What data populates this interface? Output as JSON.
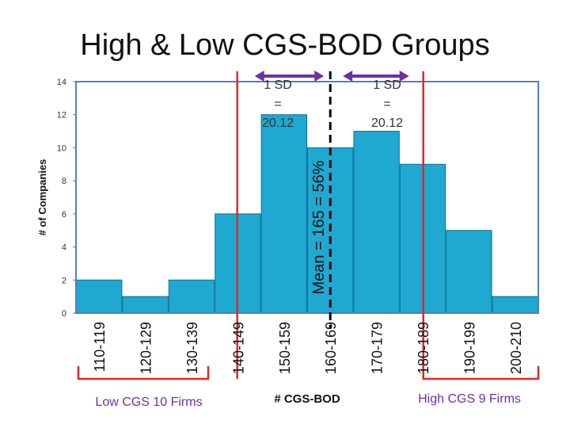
{
  "chart_data": {
    "type": "bar",
    "title": "High & Low CGS-BOD Groups",
    "xlabel": "# CGS-BOD",
    "ylabel": "# of Companies",
    "ylim": [
      0,
      14
    ],
    "yticks": [
      "0",
      "2",
      "4",
      "6",
      "8",
      "10",
      "12",
      "14"
    ],
    "categories": [
      "110-119",
      "120-129",
      "130-139",
      "140-149",
      "150-159",
      "160-169",
      "170-179",
      "180-189",
      "190-199",
      "200-210"
    ],
    "values": [
      2,
      1,
      2,
      6,
      12,
      10,
      11,
      9,
      5,
      1
    ],
    "grid": false,
    "colors": {
      "bar": "#1fa9d1",
      "bar_edge": "#0b6f93",
      "axis": "#4f81bd",
      "cutoff": "#e02828",
      "arrow": "#7030a0",
      "mean": "#000000",
      "group_text": "#7030a0"
    },
    "annotations": {
      "mean": {
        "value": 165,
        "label": "Mean = 165 = 56%"
      },
      "sd_left": {
        "line1": "1 SD",
        "line2": "=",
        "line3": "20.12"
      },
      "sd_right": {
        "line1": "1 SD",
        "line2": "=",
        "line3": "20.12"
      },
      "low_cutoff": 144.88,
      "high_cutoff": 185.12,
      "low_group": "Low CGS 10 Firms",
      "high_group": "High CGS 9 Firms"
    }
  }
}
